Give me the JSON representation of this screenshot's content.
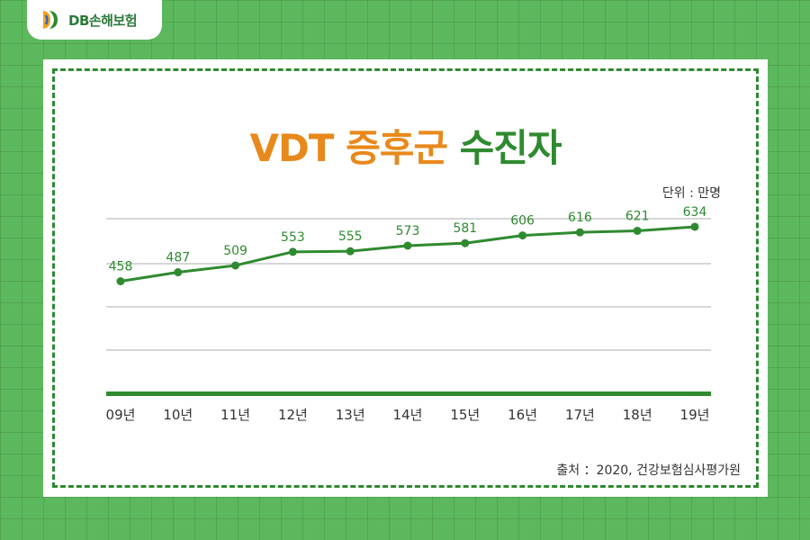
{
  "logo": {
    "text": "DB손해보험",
    "icon": "db-logo-icon"
  },
  "title": {
    "part1": "VDT 증후군",
    "part2": "수진자"
  },
  "unit_label": "단위 : 만명",
  "source_label": "출처 ：2020, 건강보험심사평가원",
  "colors": {
    "line": "#2f8a2f",
    "title_orange": "#e8891c",
    "title_green": "#2f8a2f",
    "background": "#5cb85c"
  },
  "chart_data": {
    "type": "line",
    "title": "VDT 증후군 수진자",
    "categories": [
      "09년",
      "10년",
      "11년",
      "12년",
      "13년",
      "14년",
      "15년",
      "16년",
      "17년",
      "18년",
      "19년"
    ],
    "series": [
      {
        "values": [
          458,
          487,
          509,
          553,
          555,
          573,
          581,
          606,
          616,
          621,
          634
        ]
      }
    ],
    "ylabel": "",
    "xlabel": "",
    "unit": "만명",
    "grid": true,
    "data_labels": true
  }
}
